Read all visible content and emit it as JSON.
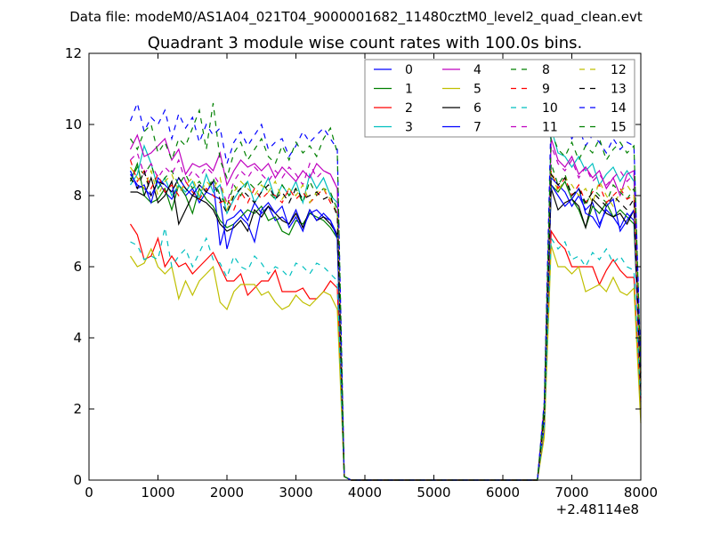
{
  "chart_data": {
    "type": "line",
    "suptitle": "Data file: modeM0/AS1A04_021T04_9000001682_11480cztM0_level2_quad_clean.evt",
    "title": "Quadrant 3 module wise count rates with 100.0s bins.",
    "xlabel": "",
    "ylabel": "",
    "x_offset_label": "+2.48114e8",
    "xlim": [
      0,
      8000
    ],
    "ylim": [
      0,
      12
    ],
    "xticks": [
      0,
      1000,
      2000,
      3000,
      4000,
      5000,
      6000,
      7000,
      8000
    ],
    "yticks": [
      0,
      2,
      4,
      6,
      8,
      10,
      12
    ],
    "legend_placement": "top-right",
    "legend_columns": 4,
    "x": [
      600,
      700,
      800,
      900,
      1000,
      1100,
      1200,
      1300,
      1400,
      1500,
      1600,
      1700,
      1800,
      1900,
      2000,
      2100,
      2200,
      2300,
      2400,
      2500,
      2600,
      2700,
      2800,
      2900,
      3000,
      3100,
      3200,
      3300,
      3400,
      3500,
      3600,
      3700,
      3800,
      6500,
      6600,
      6700,
      6800,
      6900,
      7000,
      7100,
      7200,
      7300,
      7400,
      7500,
      7600,
      7700,
      7800,
      7900,
      8000
    ],
    "series": [
      {
        "name": "0",
        "color": "#0000ff",
        "dashed": false,
        "values": [
          8.6,
          8.3,
          8.2,
          8.0,
          8.4,
          8.1,
          7.9,
          8.3,
          8.0,
          8.2,
          7.8,
          8.1,
          8.4,
          6.6,
          7.3,
          7.4,
          7.6,
          7.3,
          7.8,
          7.5,
          7.7,
          7.3,
          7.4,
          7.2,
          7.6,
          7.1,
          7.5,
          7.6,
          7.4,
          7.3,
          6.9,
          0.1,
          0,
          0,
          1.8,
          8.5,
          8.3,
          8.1,
          7.7,
          8.0,
          7.6,
          7.8,
          7.2,
          7.6,
          7.4,
          7.1,
          7.5,
          7.3,
          2.5
        ]
      },
      {
        "name": "1",
        "color": "#008000",
        "dashed": false,
        "values": [
          8.4,
          8.9,
          8.0,
          7.8,
          7.9,
          8.2,
          7.6,
          8.3,
          8.0,
          7.5,
          8.2,
          7.9,
          7.7,
          7.3,
          7.1,
          7.2,
          7.4,
          7.6,
          7.5,
          7.7,
          7.3,
          7.4,
          7.0,
          6.9,
          7.3,
          7.2,
          7.5,
          7.4,
          7.3,
          7.1,
          6.8,
          0.1,
          0,
          0,
          1.6,
          8.3,
          8.1,
          8.4,
          7.9,
          7.6,
          7.1,
          7.7,
          7.5,
          7.8,
          7.4,
          7.6,
          7.4,
          7.2,
          2.7
        ]
      },
      {
        "name": "2",
        "color": "#ff0000",
        "dashed": false,
        "values": [
          7.2,
          6.9,
          6.2,
          6.3,
          6.8,
          6.0,
          6.3,
          6.0,
          6.1,
          5.8,
          6.0,
          6.2,
          6.4,
          6.0,
          5.6,
          5.6,
          5.8,
          5.2,
          5.4,
          5.6,
          5.6,
          5.9,
          5.3,
          5.3,
          5.3,
          5.4,
          5.1,
          5.1,
          5.3,
          5.6,
          5.4,
          0.1,
          0,
          0,
          1.4,
          7.0,
          6.7,
          6.5,
          6.0,
          6.0,
          6.0,
          6.0,
          5.5,
          5.9,
          6.2,
          5.9,
          5.7,
          5.7,
          2.0
        ]
      },
      {
        "name": "3",
        "color": "#00bfbf",
        "dashed": false,
        "values": [
          8.3,
          8.6,
          9.4,
          8.9,
          8.2,
          8.5,
          8.0,
          8.3,
          8.1,
          8.4,
          7.9,
          8.6,
          8.1,
          8.3,
          7.5,
          7.9,
          8.2,
          8.4,
          7.8,
          8.1,
          8.5,
          7.9,
          8.3,
          8.0,
          8.4,
          7.8,
          8.6,
          8.2,
          8.5,
          8.0,
          7.8,
          0.1,
          0,
          0,
          2.0,
          9.9,
          9.2,
          9.1,
          8.8,
          9.1,
          8.7,
          8.9,
          8.3,
          8.6,
          8.8,
          8.4,
          8.7,
          8.4,
          3.0
        ]
      },
      {
        "name": "4",
        "color": "#bf00bf",
        "dashed": false,
        "values": [
          9.3,
          9.7,
          9.1,
          9.2,
          9.4,
          9.6,
          9.0,
          9.3,
          8.6,
          8.9,
          8.8,
          8.9,
          8.7,
          9.2,
          8.3,
          8.7,
          9.0,
          8.8,
          8.9,
          8.7,
          8.9,
          8.5,
          8.8,
          8.6,
          8.4,
          8.7,
          8.5,
          8.9,
          8.7,
          8.6,
          8.2,
          0.1,
          0,
          0,
          2.1,
          9.6,
          9.0,
          8.8,
          9.1,
          8.6,
          8.8,
          8.5,
          8.7,
          8.2,
          8.5,
          8.0,
          8.6,
          8.7,
          2.8
        ]
      },
      {
        "name": "5",
        "color": "#bfbf00",
        "dashed": false,
        "values": [
          6.3,
          6.0,
          6.1,
          6.5,
          6.0,
          5.8,
          6.0,
          5.1,
          5.6,
          5.2,
          5.6,
          5.8,
          6.0,
          5.0,
          4.8,
          5.3,
          5.5,
          5.5,
          5.5,
          5.2,
          5.3,
          5.0,
          4.8,
          4.9,
          5.2,
          5.0,
          4.9,
          5.1,
          5.3,
          5.2,
          4.8,
          0.1,
          0,
          0,
          1.2,
          6.6,
          6.0,
          6.0,
          5.8,
          6.0,
          5.3,
          5.4,
          5.5,
          5.3,
          5.7,
          5.3,
          5.2,
          5.4,
          1.6
        ]
      },
      {
        "name": "6",
        "color": "#000000",
        "dashed": false,
        "values": [
          8.1,
          8.1,
          8.0,
          8.5,
          7.8,
          8.0,
          8.4,
          7.2,
          7.6,
          8.0,
          7.9,
          7.8,
          7.6,
          7.2,
          7.0,
          7.1,
          7.3,
          7.0,
          7.6,
          7.4,
          7.7,
          7.5,
          7.3,
          7.2,
          7.5,
          7.1,
          7.6,
          7.3,
          7.4,
          7.2,
          6.9,
          0.1,
          0,
          0,
          1.7,
          8.2,
          7.6,
          7.8,
          7.9,
          7.7,
          7.1,
          7.9,
          7.7,
          7.5,
          7.4,
          7.5,
          7.2,
          7.6,
          2.4
        ]
      },
      {
        "name": "7",
        "color": "#0000ff",
        "dashed": false,
        "values": [
          8.7,
          8.2,
          8.3,
          7.8,
          8.5,
          8.3,
          8.1,
          8.5,
          8.2,
          8.0,
          8.3,
          8.1,
          8.0,
          7.9,
          6.5,
          7.2,
          7.4,
          7.2,
          6.7,
          7.6,
          7.8,
          7.5,
          7.7,
          7.1,
          7.4,
          7.0,
          7.6,
          7.3,
          7.5,
          7.3,
          6.8,
          0.1,
          0,
          0,
          1.5,
          8.3,
          8.0,
          7.7,
          7.9,
          8.2,
          7.5,
          7.4,
          7.1,
          7.7,
          7.9,
          7.0,
          7.3,
          7.6,
          2.3
        ]
      },
      {
        "name": "8",
        "color": "#008000",
        "dashed": true,
        "values": [
          8.4,
          8.8,
          8.6,
          8.9,
          8.2,
          8.5,
          8.7,
          8.3,
          8.6,
          8.2,
          8.4,
          8.1,
          8.5,
          8.0,
          7.7,
          8.3,
          8.0,
          8.4,
          8.2,
          8.4,
          8.1,
          7.9,
          8.3,
          8.0,
          8.2,
          7.8,
          8.4,
          8.0,
          8.2,
          8.1,
          7.6,
          0.1,
          0,
          0,
          1.9,
          8.9,
          8.3,
          8.6,
          8.0,
          8.2,
          7.7,
          8.2,
          8.0,
          7.8,
          8.3,
          8.1,
          7.9,
          8.2,
          2.6
        ]
      },
      {
        "name": "9",
        "color": "#ff0000",
        "dashed": true,
        "values": [
          9.0,
          8.4,
          8.7,
          8.2,
          8.6,
          8.1,
          8.3,
          8.0,
          8.4,
          8.1,
          7.9,
          8.2,
          8.0,
          7.8,
          7.9,
          7.6,
          8.1,
          7.8,
          8.2,
          7.9,
          8.1,
          8.0,
          7.8,
          8.2,
          7.9,
          8.1,
          7.8,
          8.0,
          8.2,
          7.8,
          7.5,
          0.1,
          0,
          0,
          1.7,
          8.7,
          8.2,
          8.5,
          8.0,
          8.3,
          7.8,
          8.1,
          8.3,
          7.8,
          8.0,
          8.2,
          7.9,
          8.0,
          2.6
        ]
      },
      {
        "name": "10",
        "color": "#00bfbf",
        "dashed": true,
        "values": [
          6.7,
          6.6,
          6.2,
          6.3,
          6.2,
          7.1,
          6.0,
          6.3,
          6.5,
          6.0,
          6.4,
          6.8,
          6.2,
          6.1,
          5.7,
          6.3,
          6.0,
          5.9,
          6.3,
          6.1,
          5.8,
          6.0,
          5.9,
          5.7,
          6.1,
          6.0,
          5.8,
          6.1,
          6.0,
          5.8,
          5.6,
          0.1,
          0,
          0,
          1.5,
          6.8,
          6.5,
          6.7,
          6.2,
          6.3,
          6.0,
          6.4,
          6.2,
          6.5,
          6.1,
          6.3,
          6.0,
          5.9,
          2.2
        ]
      },
      {
        "name": "11",
        "color": "#bf00bf",
        "dashed": true,
        "values": [
          9.0,
          9.2,
          8.6,
          8.9,
          8.5,
          8.8,
          8.6,
          9.0,
          8.4,
          8.7,
          8.5,
          8.8,
          8.6,
          8.3,
          7.8,
          8.4,
          8.7,
          8.5,
          8.8,
          8.6,
          8.4,
          8.7,
          8.5,
          8.8,
          8.6,
          8.3,
          8.9,
          8.5,
          8.7,
          8.6,
          8.2,
          0.1,
          0,
          0,
          2.0,
          9.4,
          8.9,
          8.7,
          9.0,
          8.5,
          8.8,
          8.4,
          8.6,
          8.3,
          8.5,
          8.7,
          8.4,
          8.6,
          2.9
        ]
      },
      {
        "name": "12",
        "color": "#bfbf00",
        "dashed": true,
        "values": [
          8.8,
          8.5,
          8.2,
          8.7,
          8.0,
          8.4,
          8.6,
          8.1,
          8.3,
          8.5,
          8.0,
          8.4,
          8.2,
          8.5,
          7.6,
          8.1,
          8.4,
          8.2,
          8.0,
          8.3,
          8.1,
          8.4,
          7.9,
          8.2,
          8.0,
          8.3,
          7.8,
          8.1,
          8.2,
          7.9,
          7.5,
          0.1,
          0,
          0,
          1.6,
          8.7,
          8.1,
          8.5,
          8.3,
          8.0,
          8.2,
          7.8,
          8.4,
          8.0,
          7.7,
          8.1,
          8.3,
          8.0,
          2.4
        ]
      },
      {
        "name": "13",
        "color": "#000000",
        "dashed": true,
        "values": [
          8.5,
          8.2,
          8.7,
          8.0,
          8.4,
          8.3,
          8.1,
          8.5,
          8.2,
          8.0,
          8.3,
          8.1,
          8.4,
          7.9,
          7.5,
          8.0,
          8.2,
          8.0,
          7.8,
          8.1,
          8.3,
          7.9,
          8.1,
          7.8,
          8.2,
          7.9,
          8.0,
          8.1,
          7.9,
          8.0,
          7.4,
          0.1,
          0,
          0,
          1.8,
          8.6,
          8.3,
          8.5,
          8.0,
          8.2,
          7.8,
          8.1,
          7.9,
          7.7,
          8.0,
          7.8,
          7.6,
          7.9,
          2.5
        ]
      },
      {
        "name": "14",
        "color": "#0000ff",
        "dashed": true,
        "values": [
          10.1,
          10.6,
          9.8,
          10.2,
          10.0,
          10.4,
          9.6,
          10.3,
          9.9,
          10.2,
          9.5,
          10.0,
          9.7,
          9.9,
          8.9,
          9.5,
          9.8,
          9.4,
          9.7,
          10.0,
          9.3,
          9.5,
          9.6,
          9.1,
          9.4,
          9.8,
          9.5,
          9.7,
          9.9,
          9.6,
          9.3,
          0.1,
          0,
          0,
          2.2,
          10.4,
          9.8,
          10.0,
          9.6,
          9.9,
          9.4,
          9.7,
          9.5,
          9.2,
          9.6,
          9.3,
          9.5,
          9.4,
          3.2
        ]
      },
      {
        "name": "15",
        "color": "#008000",
        "dashed": true,
        "values": [
          9.6,
          9.3,
          9.8,
          10.0,
          9.2,
          9.5,
          9.0,
          9.6,
          9.4,
          9.9,
          10.4,
          9.3,
          10.6,
          9.0,
          8.5,
          9.2,
          9.5,
          9.0,
          9.3,
          9.6,
          9.1,
          8.9,
          9.4,
          9.0,
          9.5,
          9.2,
          9.4,
          9.1,
          9.6,
          9.9,
          9.2,
          0.1,
          0,
          0,
          2.1,
          9.8,
          9.3,
          9.1,
          9.5,
          9.0,
          9.4,
          9.2,
          9.6,
          9.0,
          9.3,
          9.5,
          9.2,
          9.4,
          3.0
        ]
      }
    ]
  }
}
